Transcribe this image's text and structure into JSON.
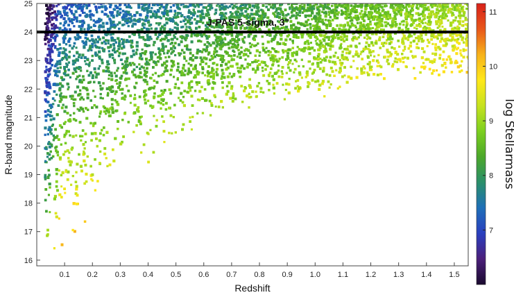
{
  "chart_data": {
    "type": "scatter",
    "title": "",
    "xlabel": "Redshift",
    "ylabel": "R-band magnitude",
    "xlim": [
      0.0,
      1.55
    ],
    "ylim": [
      15.8,
      25.0
    ],
    "xticks": [
      "0.1",
      "0.2",
      "0.3",
      "0.4",
      "0.5",
      "0.6",
      "0.7",
      "0.8",
      "0.9",
      "1.0",
      "1.1",
      "1.2",
      "1.3",
      "1.4",
      "1.5"
    ],
    "yticks": [
      "16",
      "17",
      "18",
      "19",
      "20",
      "21",
      "22",
      "23",
      "24",
      "25"
    ],
    "grid": false,
    "annotation": {
      "text": "J-PAS 5-sigma, 3\"",
      "type": "horizontal_line",
      "y": 24.0
    },
    "color_scale": {
      "label": "log Stellarmass",
      "min": 6.0,
      "max": 11.15,
      "ticks": [
        "7",
        "8",
        "9",
        "10",
        "11"
      ],
      "colormap": [
        "#1a0a2e",
        "#4b1f7a",
        "#2a3fbf",
        "#1e6fb8",
        "#2a8f6a",
        "#4ca82a",
        "#7ccf1f",
        "#c6e21f",
        "#ffe81a",
        "#f7b21a",
        "#e8561a",
        "#d8211a"
      ]
    },
    "density_envelope": {
      "description_points": "faint limit vs redshift",
      "bright_limit": [
        {
          "x": 0.03,
          "y": 16.3
        },
        {
          "x": 0.08,
          "y": 16.0
        },
        {
          "x": 0.12,
          "y": 16.2
        },
        {
          "x": 0.2,
          "y": 17.8
        },
        {
          "x": 0.3,
          "y": 18.8
        },
        {
          "x": 0.4,
          "y": 19.4
        },
        {
          "x": 0.5,
          "y": 20.0
        },
        {
          "x": 0.6,
          "y": 20.4
        },
        {
          "x": 0.7,
          "y": 20.8
        },
        {
          "x": 0.8,
          "y": 21.1
        },
        {
          "x": 0.9,
          "y": 21.3
        },
        {
          "x": 1.0,
          "y": 21.6
        },
        {
          "x": 1.2,
          "y": 22.0
        },
        {
          "x": 1.4,
          "y": 22.2
        },
        {
          "x": 1.55,
          "y": 22.4
        }
      ]
    }
  }
}
